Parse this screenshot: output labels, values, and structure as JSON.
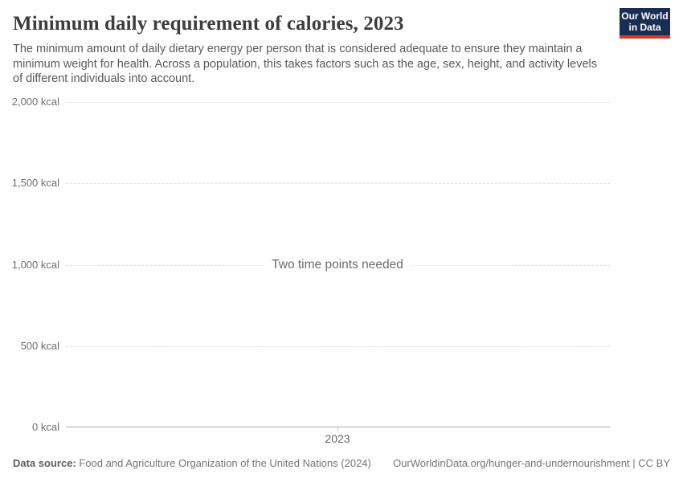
{
  "header": {
    "title": "Minimum daily requirement of calories, 2023",
    "subtitle": "The minimum amount of daily dietary energy per person that is considered adequate to ensure they maintain a minimum weight for health. Across a population, this takes factors such as the age, sex, height, and activity levels of different individuals into account.",
    "logo": {
      "line1": "Our World",
      "line2": "in Data",
      "bg_color": "#1a2e54",
      "stripe_color": "#d43b2d"
    }
  },
  "chart_data": {
    "type": "line",
    "title": "Minimum daily requirement of calories, 2023",
    "series": [],
    "annotation": "Two time points needed",
    "note": "No data line is drawn; placeholder text indicates two time points are needed to plot a line",
    "x_ticks": [
      "2023"
    ],
    "ylim": [
      0,
      2000
    ],
    "y_unit": "kcal",
    "yticks": [
      {
        "value": 2000,
        "label": "2,000 kcal"
      },
      {
        "value": 1500,
        "label": "1,500 kcal"
      },
      {
        "value": 1000,
        "label": "1,000 kcal"
      },
      {
        "value": 500,
        "label": "500 kcal"
      },
      {
        "value": 0,
        "label": "0 kcal"
      }
    ],
    "grid": "horizontal-dashed",
    "legend": "none"
  },
  "footer": {
    "datasource_label": "Data source:",
    "datasource_value": "Food and Agriculture Organization of the United Nations (2024)",
    "link": "OurWorldinData.org/hunger-and-undernourishment | CC BY"
  }
}
